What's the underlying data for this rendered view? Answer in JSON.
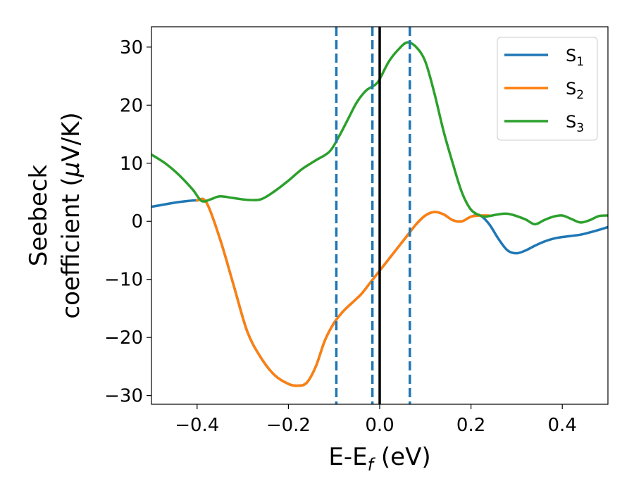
{
  "chart_data": {
    "type": "line",
    "xlabel": {
      "main": "E-E",
      "sub": "f",
      "unit": " (eV)"
    },
    "ylabel": {
      "line1": "Seebeck",
      "line2": "coefficient  (",
      "mu": "μ",
      "line2_end": "V/K)"
    },
    "xlim": [
      -0.5,
      0.5
    ],
    "ylim": [
      -31.5,
      33.5
    ],
    "xticks": [
      -0.4,
      -0.2,
      0.0,
      0.2,
      0.4
    ],
    "xtick_labels": [
      "−0.4",
      "−0.2",
      "0.0",
      "0.2",
      "0.4"
    ],
    "yticks": [
      -30,
      -20,
      -10,
      0,
      10,
      20,
      30
    ],
    "ytick_labels": [
      "−30",
      "−20",
      "−10",
      "0",
      "10",
      "20",
      "30"
    ],
    "grid": false,
    "legend_position": "top-right",
    "series": [
      {
        "name": "S",
        "subscript": "1",
        "color": "#1f77b4",
        "x": [
          -0.5,
          -0.45,
          -0.42,
          -0.4,
          -0.38,
          -0.35,
          -0.32,
          -0.29,
          -0.26,
          -0.23,
          -0.2,
          -0.18,
          -0.16,
          -0.14,
          -0.12,
          -0.1,
          -0.08,
          -0.06,
          -0.04,
          -0.02,
          0.0,
          0.02,
          0.04,
          0.06,
          0.08,
          0.1,
          0.12,
          0.14,
          0.16,
          0.18,
          0.2,
          0.22,
          0.24,
          0.26,
          0.28,
          0.3,
          0.32,
          0.34,
          0.36,
          0.38,
          0.4,
          0.44,
          0.47,
          0.5
        ],
        "y": [
          2.5,
          3.2,
          3.5,
          3.6,
          3.3,
          -3.0,
          -11.0,
          -19.0,
          -23.5,
          -26.5,
          -28.0,
          -28.3,
          -27.8,
          -25.0,
          -20.5,
          -17.5,
          -15.5,
          -14.0,
          -12.5,
          -10.5,
          -8.5,
          -6.5,
          -4.5,
          -2.5,
          -0.5,
          1.0,
          1.6,
          1.2,
          0.2,
          0.0,
          0.8,
          1.0,
          -0.5,
          -3.0,
          -5.0,
          -5.5,
          -5.0,
          -4.2,
          -3.5,
          -3.0,
          -2.7,
          -2.3,
          -1.7,
          -1.0
        ]
      },
      {
        "name": "S",
        "subscript": "2",
        "color": "#ff7f0e",
        "x": [
          -0.4,
          -0.38,
          -0.35,
          -0.32,
          -0.29,
          -0.26,
          -0.23,
          -0.2,
          -0.18,
          -0.16,
          -0.14,
          -0.12,
          -0.1,
          -0.08,
          -0.06,
          -0.04,
          -0.02,
          0.0,
          0.02,
          0.04,
          0.06,
          0.08,
          0.1,
          0.12,
          0.14,
          0.16,
          0.18,
          0.2,
          0.22,
          0.24
        ],
        "y": [
          3.6,
          3.3,
          -3.0,
          -11.0,
          -19.0,
          -23.5,
          -26.5,
          -28.0,
          -28.3,
          -27.8,
          -25.0,
          -20.5,
          -17.5,
          -15.5,
          -14.0,
          -12.5,
          -10.5,
          -8.5,
          -6.5,
          -4.5,
          -2.5,
          -0.5,
          1.0,
          1.6,
          1.2,
          0.2,
          0.0,
          0.8,
          1.0,
          1.0
        ]
      },
      {
        "name": "S",
        "subscript": "3",
        "color": "#2ca02c",
        "x": [
          -0.5,
          -0.47,
          -0.44,
          -0.41,
          -0.39,
          -0.37,
          -0.35,
          -0.32,
          -0.29,
          -0.26,
          -0.23,
          -0.2,
          -0.17,
          -0.14,
          -0.11,
          -0.09,
          -0.07,
          -0.05,
          -0.03,
          -0.01,
          0.0,
          0.02,
          0.04,
          0.06,
          0.08,
          0.1,
          0.12,
          0.14,
          0.16,
          0.18,
          0.2,
          0.22,
          0.23,
          0.24,
          0.26,
          0.28,
          0.3,
          0.32,
          0.34,
          0.36,
          0.38,
          0.4,
          0.42,
          0.44,
          0.46,
          0.48,
          0.5
        ],
        "y": [
          11.5,
          10.0,
          8.0,
          5.5,
          3.5,
          3.8,
          4.3,
          4.0,
          3.7,
          3.8,
          5.2,
          7.0,
          9.0,
          10.5,
          12.0,
          14.5,
          17.5,
          20.5,
          22.5,
          23.5,
          24.5,
          27.5,
          29.5,
          30.8,
          30.0,
          27.5,
          22.0,
          15.5,
          10.0,
          5.0,
          2.0,
          1.0,
          0.8,
          0.9,
          1.2,
          1.3,
          0.9,
          0.3,
          -0.5,
          0.2,
          0.8,
          1.0,
          0.4,
          -0.2,
          0.2,
          0.9,
          1.0
        ]
      }
    ],
    "vertical_lines": [
      {
        "x": -0.095,
        "style": "dashed",
        "color": "#1f77b4"
      },
      {
        "x": -0.016,
        "style": "dashed",
        "color": "#1f77b4"
      },
      {
        "x": 0.066,
        "style": "dashed",
        "color": "#1f77b4"
      },
      {
        "x": 0.0,
        "style": "solid",
        "color": "#000000"
      }
    ]
  }
}
